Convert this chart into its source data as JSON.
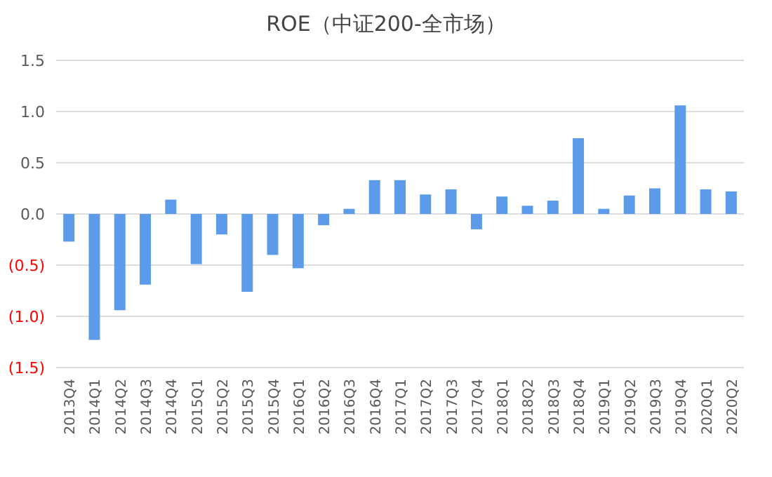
{
  "chart_data": {
    "type": "bar",
    "title": "ROE（中证200-全市场）",
    "categories": [
      "2013Q4",
      "2014Q1",
      "2014Q2",
      "2014Q3",
      "2014Q4",
      "2015Q1",
      "2015Q2",
      "2015Q3",
      "2015Q4",
      "2016Q1",
      "2016Q2",
      "2016Q3",
      "2016Q4",
      "2017Q1",
      "2017Q2",
      "2017Q3",
      "2017Q4",
      "2018Q1",
      "2018Q2",
      "2018Q3",
      "2018Q4",
      "2019Q1",
      "2019Q2",
      "2019Q3",
      "2019Q4",
      "2020Q1",
      "2020Q2"
    ],
    "values": [
      -0.27,
      -1.23,
      -0.94,
      -0.69,
      0.14,
      -0.49,
      -0.2,
      -0.76,
      -0.4,
      -0.53,
      -0.11,
      0.05,
      0.33,
      0.33,
      0.19,
      0.24,
      -0.15,
      0.17,
      0.08,
      0.13,
      0.74,
      0.05,
      0.18,
      0.25,
      1.06,
      0.24,
      0.22
    ],
    "color": "#5b9bea",
    "ylim": [
      -1.5,
      1.5
    ],
    "yticks": [
      {
        "value": -1.5,
        "label": "(1.5)"
      },
      {
        "value": -1.0,
        "label": "(1.0)"
      },
      {
        "value": -0.5,
        "label": "(0.5)"
      },
      {
        "value": 0,
        "label": "0.0"
      },
      {
        "value": 0.5,
        "label": "0.5"
      },
      {
        "value": 1.0,
        "label": "1.0"
      },
      {
        "value": 1.5,
        "label": "1.5"
      }
    ],
    "grid": "y"
  }
}
